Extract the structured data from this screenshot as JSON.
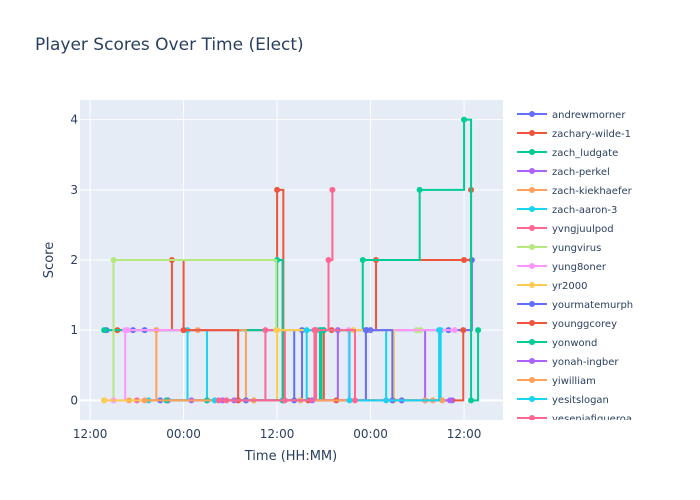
{
  "chart_data": {
    "type": "line",
    "line_shape": "step-hv",
    "title": "Player Scores Over Time (Elect)",
    "xlabel": "Time (HH:MM)",
    "ylabel": "Score",
    "x_unit": "hours since first 12:00",
    "xlim": [
      -1.3,
      53
    ],
    "ylim": [
      -0.28,
      4.28
    ],
    "grid": true,
    "legend_position": "right",
    "xticks": [
      {
        "v": 0,
        "label": "12:00"
      },
      {
        "v": 12,
        "label": "00:00"
      },
      {
        "v": 24,
        "label": "12:00"
      },
      {
        "v": 36,
        "label": "00:00"
      },
      {
        "v": 48,
        "label": "12:00"
      }
    ],
    "yticks": [
      0,
      1,
      2,
      3,
      4
    ],
    "series": [
      {
        "name": "andrewmorner",
        "color": "#636efa",
        "x": [
          2.1,
          5.5,
          7,
          26.2,
          27.2,
          35.5,
          36,
          46,
          49
        ],
        "y": [
          1,
          1,
          1,
          0,
          1,
          1,
          1,
          1,
          2
        ]
      },
      {
        "name": "zachary-wilde-1",
        "color": "#EF553B",
        "x": [
          3.5,
          10.5,
          12,
          24,
          24.8,
          30,
          31,
          36.7,
          48,
          48.9
        ],
        "y": [
          1,
          2,
          1,
          3,
          0,
          1,
          1,
          2,
          2,
          3
        ]
      },
      {
        "name": "zach_ludgate",
        "color": "#00cc96",
        "x": [
          1.8,
          24,
          24.7,
          29.5,
          35,
          42.3,
          48,
          48.9,
          49.8
        ],
        "y": [
          1,
          2,
          0,
          1,
          2,
          3,
          4,
          0,
          1
        ]
      },
      {
        "name": "zach-perkel",
        "color": "#ab63fa",
        "x": [
          10,
          18.5,
          31.8,
          43,
          46.5
        ],
        "y": [
          0,
          0,
          1,
          0,
          0
        ]
      },
      {
        "name": "zach-kiekhaefer",
        "color": "#FFA15A",
        "x": [
          5,
          8.5,
          13.8,
          20,
          40,
          43
        ],
        "y": [
          0,
          1,
          1,
          0,
          0,
          0
        ]
      },
      {
        "name": "zach-aaron-3",
        "color": "#19d3f3",
        "x": [
          7.5,
          12.5,
          15,
          29,
          38,
          45
        ],
        "y": [
          0,
          1,
          0,
          1,
          0,
          1
        ]
      },
      {
        "name": "yvngjuulpod",
        "color": "#FF6692",
        "x": [
          6,
          22.5,
          25,
          29,
          30.6,
          31.1
        ],
        "y": [
          0,
          1,
          0,
          1,
          2,
          3
        ]
      },
      {
        "name": "yungvirus",
        "color": "#B6E880",
        "x": [
          1.8,
          3,
          23.9,
          41.9,
          42.4
        ],
        "y": [
          0,
          2,
          1,
          1,
          1
        ]
      },
      {
        "name": "yung8oner",
        "color": "#FF97FF",
        "x": [
          3,
          4.5,
          4.8,
          19,
          33.2,
          46.8
        ],
        "y": [
          0,
          1,
          1,
          0,
          1,
          1
        ]
      },
      {
        "name": "yr2000",
        "color": "#FECB52",
        "x": [
          1.8,
          24,
          33.8,
          39
        ],
        "y": [
          0,
          1,
          1,
          0
        ]
      },
      {
        "name": "yourmatemurph",
        "color": "#636efa",
        "x": [
          9,
          20,
          35.4,
          38.8,
          40
        ],
        "y": [
          0,
          0,
          1,
          0,
          0
        ]
      },
      {
        "name": "younggcorey",
        "color": "#EF553B",
        "x": [
          12,
          19,
          28,
          31.6,
          47.9
        ],
        "y": [
          1,
          0,
          0,
          0,
          1
        ]
      },
      {
        "name": "yonwond",
        "color": "#00cc96",
        "x": [
          9.8,
          15,
          29.7,
          30
        ],
        "y": [
          0,
          0,
          1,
          1
        ]
      },
      {
        "name": "yonah-ingber",
        "color": "#ab63fa",
        "x": [
          13,
          17,
          28.5,
          46.2
        ],
        "y": [
          0,
          0,
          0,
          0
        ]
      },
      {
        "name": "yiwilliam",
        "color": "#FFA15A",
        "x": [
          7,
          21,
          27,
          44,
          45.2
        ],
        "y": [
          0,
          0,
          0,
          0,
          0
        ]
      },
      {
        "name": "yesitslogan",
        "color": "#19d3f3",
        "x": [
          16,
          27.8,
          33.3,
          44.8
        ],
        "y": [
          0,
          1,
          0,
          1
        ]
      },
      {
        "name": "yeseniafigueroa",
        "color": "#FF6692",
        "x": [
          16.5,
          17.5,
          28.8,
          34
        ],
        "y": [
          0,
          0,
          1,
          0
        ]
      }
    ]
  }
}
